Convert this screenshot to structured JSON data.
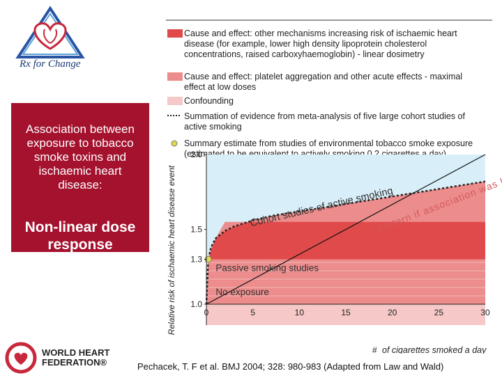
{
  "colors": {
    "brand_red": "#a4122e",
    "cause_dark": "#e04a4a",
    "cause_platelet": "#ec8c8c",
    "confounding": "#f6c8c8",
    "plot_bg": "#d8eef8",
    "summary_point": "#e2d84e"
  },
  "icons": [
    "rx-for-change-heart-logo",
    "world-heart-federation-logo"
  ],
  "rx_logo_text": "Rx for Change",
  "title_main": "Association between exposure to tobacco smoke toxins and ischaemic heart disease:",
  "title_sub": "Non-linear dose response",
  "whf": {
    "line1": "WORLD HEART",
    "line2": "FEDERATION®"
  },
  "citation": "Pechacek, T. F et al. BMJ 2004; 328: 980-983 (Adapted from Law and Wald)",
  "chart_data": {
    "type": "line",
    "ylabel": "Relative risk of ischaemic heart disease event",
    "xlabel": "# of cigarettes smoked a day",
    "x_ticks": [
      0,
      5,
      10,
      15,
      20,
      25,
      30
    ],
    "y_ticks": [
      1.0,
      1.3,
      1.5,
      2.0
    ],
    "xlim": [
      0,
      30
    ],
    "ylim": [
      1.0,
      2.0
    ],
    "legend": [
      {
        "key": "cause_dark",
        "text": "Cause and effect: other mechanisms increasing risk of ischaemic heart disease (for example, lower high density lipoprotein cholesterol concentrations, raised carboxyhaemoglobin) - linear dosimetry"
      },
      {
        "key": "cause_platelet",
        "text": "Cause and effect: platelet aggregation and other acute effects - maximal effect at low doses"
      },
      {
        "key": "confounding",
        "text": "Confounding"
      },
      {
        "key": "line",
        "text": "Summation of evidence from meta-analysis of five large cohort studies of active smoking"
      },
      {
        "key": "point",
        "text": "Summary estimate from studies of environmental tobacco smoke exposure (estimated to be equivalent to actively smoking 0.2 cigarettes a day)"
      }
    ],
    "series": [
      {
        "name": "Cohort studies of active smoking",
        "x": [
          0,
          0.2,
          0.5,
          1,
          2,
          3,
          4,
          5,
          7,
          10,
          15,
          20,
          25,
          30
        ],
        "y": [
          1.0,
          1.3,
          1.38,
          1.44,
          1.49,
          1.52,
          1.54,
          1.56,
          1.59,
          1.62,
          1.67,
          1.72,
          1.77,
          1.82
        ]
      },
      {
        "name": "Passive smoking studies",
        "x": [
          0.2
        ],
        "y": [
          1.3
        ]
      }
    ],
    "reference_line": {
      "x": [
        0,
        30
      ],
      "y": [
        1.0,
        2.0
      ]
    },
    "region_labels": {
      "cohort": "Cohort studies of active smoking",
      "passive": "Passive smoking studies",
      "none": "No exposure"
    },
    "annotation": "Pattern if association was linear"
  }
}
